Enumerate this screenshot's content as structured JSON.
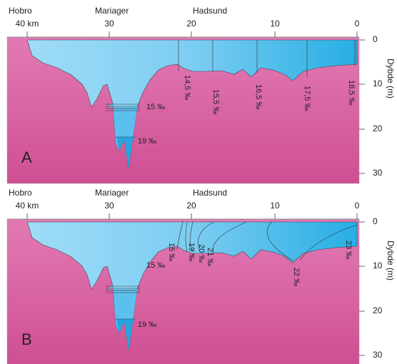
{
  "panels": [
    {
      "label": "A",
      "places": [
        "Hobro",
        "Mariager",
        "Hadsund"
      ],
      "xticks": [
        "40 km",
        "30",
        "20",
        "10",
        "0"
      ],
      "yticks": [
        "0",
        "10",
        "20",
        "30"
      ],
      "ylabel": "Dybde (m)",
      "isohalines": [
        "15 ‰",
        "19 ‰",
        "14,5 ‰",
        "15,5 ‰",
        "16,5 ‰",
        "17,5 ‰",
        "18,5 ‰"
      ]
    },
    {
      "label": "B",
      "places": [
        "Hobro",
        "Mariager",
        "Hadsund"
      ],
      "xticks": [
        "40 km",
        "30",
        "20",
        "10",
        "0"
      ],
      "yticks": [
        "0",
        "10",
        "20",
        "30"
      ],
      "ylabel": "Dybde (m)",
      "isohalines": [
        "15 ‰",
        "19 ‰",
        "15 ‰",
        "19 ‰",
        "20 ‰",
        "21 ‰",
        "22 ‰",
        "23 ‰"
      ]
    }
  ]
}
